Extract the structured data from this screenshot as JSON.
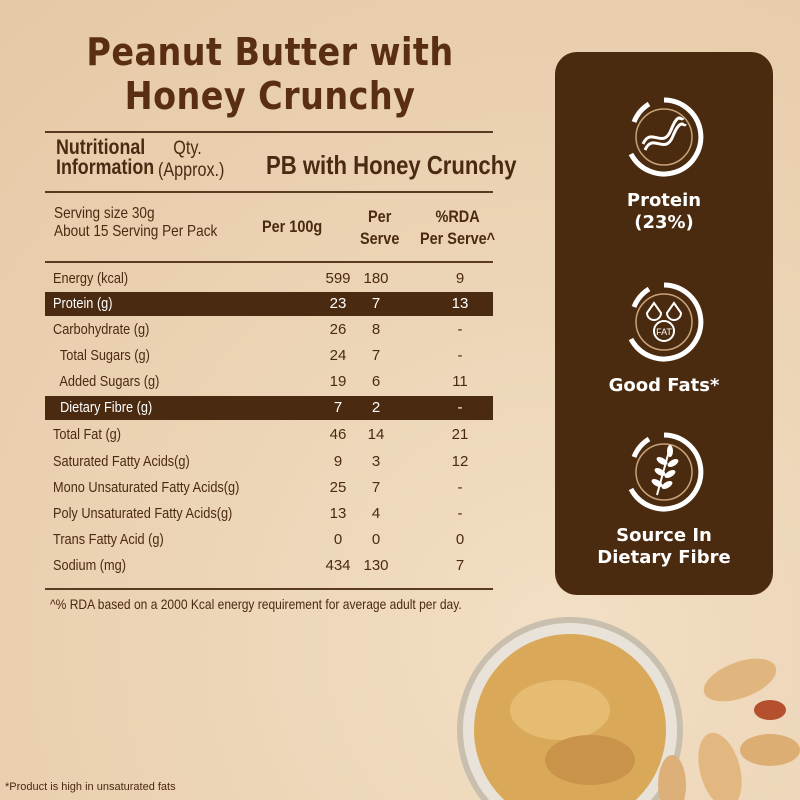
{
  "title": "Peanut Butter with Honey Crunchy",
  "header": {
    "col_label_1": "Nutritional",
    "col_label_2": "Information",
    "qty_1": "Qty.",
    "qty_2": "(Approx.)",
    "product": "PB with Honey Crunchy"
  },
  "subheader": {
    "serving_size": "Serving size 30g",
    "servings": "About 15 Serving Per Pack",
    "per100g": "Per 100g",
    "per_serve_1": "Per",
    "per_serve_2": "Serve",
    "rda_1": "%RDA",
    "rda_2": "Per Serve^"
  },
  "rows": [
    {
      "label": "Energy (kcal)",
      "per100g": "599",
      "per_serve": "180",
      "rda": "9",
      "highlight": false
    },
    {
      "label": "Protein (g)",
      "per100g": "23",
      "per_serve": "7",
      "rda": "13",
      "highlight": true
    },
    {
      "label": "Carbohydrate (g)",
      "per100g": "26",
      "per_serve": "8",
      "rda": "-",
      "highlight": false
    },
    {
      "label": "  Total Sugars (g)",
      "per100g": "24",
      "per_serve": "7",
      "rda": "-",
      "highlight": false
    },
    {
      "label": "  Added Sugars (g)",
      "per100g": "19",
      "per_serve": "6",
      "rda": "11",
      "highlight": false
    },
    {
      "label": "  Dietary Fibre (g)",
      "per100g": "7",
      "per_serve": "2",
      "rda": "-",
      "highlight": true
    },
    {
      "label": "Total Fat (g)",
      "per100g": "46",
      "per_serve": "14",
      "rda": "21",
      "highlight": false
    },
    {
      "label": "Saturated Fatty Acids(g)",
      "per100g": "9",
      "per_serve": "3",
      "rda": "12",
      "highlight": false
    },
    {
      "label": "Mono Unsaturated Fatty Acids(g)",
      "per100g": "25",
      "per_serve": "7",
      "rda": "-",
      "highlight": false
    },
    {
      "label": "Poly Unsaturated Fatty Acids(g)",
      "per100g": "13",
      "per_serve": "4",
      "rda": "-",
      "highlight": false
    },
    {
      "label": "Trans Fatty Acid (g)",
      "per100g": "0",
      "per_serve": "0",
      "rda": "0",
      "highlight": false
    },
    {
      "label": "Sodium (mg)",
      "per100g": "434",
      "per_serve": "130",
      "rda": "7",
      "highlight": false
    }
  ],
  "footnote": "^% RDA based on a 2000 Kcal energy requirement for average adult per day.",
  "bottom_note": "*Product is high in unsaturated fats",
  "badges": [
    {
      "icon": "dna-icon",
      "line1": "Protein",
      "line2": "(23%)"
    },
    {
      "icon": "fat-drops-icon",
      "line1": "Good Fats*",
      "line2": "",
      "fat_text": "FAT"
    },
    {
      "icon": "wheat-icon",
      "line1": "Source In",
      "line2": "Dietary Fibre"
    }
  ],
  "colors": {
    "background": "#ecd4b6",
    "brown": "#4b2b0f",
    "title": "#5a2e12"
  }
}
